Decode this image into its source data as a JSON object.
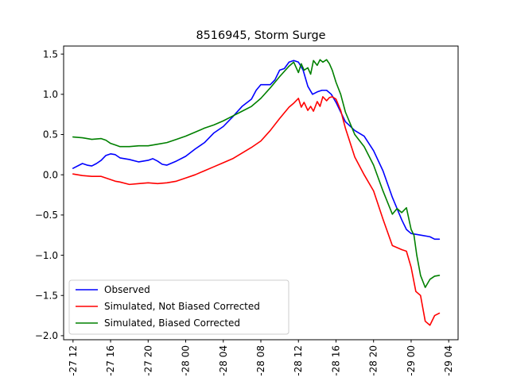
{
  "chart_data": {
    "type": "line",
    "title": "8516945, Storm Surge",
    "xlabel": "",
    "ylabel": "",
    "x_tick_labels": [
      "-27 12",
      "-27 16",
      "-27 20",
      "-28 00",
      "-28 04",
      "-28 08",
      "-28 12",
      "-28 16",
      "-28 20",
      "-29 00",
      "-29 04"
    ],
    "x_tick_hours": [
      0,
      4,
      8,
      12,
      16,
      20,
      24,
      28,
      32,
      36,
      40
    ],
    "xlim": [
      -1,
      41
    ],
    "y_ticks": [
      1.5,
      1.0,
      0.5,
      0.0,
      -0.5,
      -1.0,
      -1.5,
      -2.0
    ],
    "y_tick_labels": [
      "1.5",
      "1.0",
      "0.5",
      "0.0",
      "−0.5",
      "−1.0",
      "−1.5",
      "−2.0"
    ],
    "ylim": [
      -2.05,
      1.6
    ],
    "grid": false,
    "legend_position": "lower-left",
    "series": [
      {
        "name": "Observed",
        "color": "#0000ff",
        "x": [
          0,
          1,
          1.5,
          2,
          2.5,
          3,
          3.5,
          4,
          4.5,
          5,
          6,
          7,
          8,
          8.5,
          9,
          9.5,
          10,
          11,
          12,
          13,
          14,
          15,
          16,
          17,
          18,
          19,
          19.5,
          20,
          21,
          21.5,
          22,
          22.5,
          23,
          23.5,
          24,
          24.5,
          25,
          25.5,
          26,
          26.5,
          27,
          27.5,
          28,
          28.5,
          29,
          30,
          31,
          32,
          33,
          34,
          35,
          35.5,
          36,
          36.5,
          37,
          38,
          38.5,
          39
        ],
        "y": [
          0.08,
          0.14,
          0.12,
          0.11,
          0.14,
          0.18,
          0.24,
          0.26,
          0.25,
          0.21,
          0.19,
          0.16,
          0.18,
          0.2,
          0.17,
          0.13,
          0.12,
          0.17,
          0.23,
          0.32,
          0.4,
          0.52,
          0.6,
          0.72,
          0.85,
          0.94,
          1.05,
          1.12,
          1.12,
          1.18,
          1.3,
          1.32,
          1.4,
          1.42,
          1.4,
          1.3,
          1.1,
          1.0,
          1.03,
          1.05,
          1.05,
          1.0,
          0.9,
          0.78,
          0.66,
          0.55,
          0.48,
          0.3,
          0.05,
          -0.28,
          -0.56,
          -0.68,
          -0.73,
          -0.74,
          -0.75,
          -0.77,
          -0.8,
          -0.8
        ]
      },
      {
        "name": "Simulated, Not Biased Corrected",
        "color": "#ff0000",
        "x": [
          0,
          1,
          2,
          3,
          4,
          4.5,
          5,
          6,
          7,
          8,
          9,
          10,
          11,
          12,
          13,
          14,
          15,
          16,
          17,
          18,
          19,
          20,
          21,
          22,
          23,
          23.5,
          24,
          24.3,
          24.6,
          25,
          25.3,
          25.6,
          26,
          26.3,
          26.6,
          27,
          27.3,
          27.6,
          28,
          28.5,
          29,
          30,
          31,
          32,
          33,
          34,
          35,
          35.5,
          36,
          36.5,
          37,
          37.5,
          38,
          38.5,
          39
        ],
        "y": [
          0.01,
          -0.01,
          -0.02,
          -0.02,
          -0.06,
          -0.08,
          -0.09,
          -0.12,
          -0.11,
          -0.1,
          -0.11,
          -0.1,
          -0.08,
          -0.04,
          0.0,
          0.05,
          0.1,
          0.15,
          0.2,
          0.27,
          0.34,
          0.42,
          0.55,
          0.7,
          0.84,
          0.89,
          0.95,
          0.84,
          0.9,
          0.8,
          0.85,
          0.79,
          0.91,
          0.85,
          0.97,
          0.92,
          0.96,
          0.97,
          0.94,
          0.8,
          0.58,
          0.22,
          0.0,
          -0.2,
          -0.55,
          -0.88,
          -0.93,
          -0.95,
          -1.15,
          -1.45,
          -1.5,
          -1.82,
          -1.87,
          -1.75,
          -1.72
        ]
      },
      {
        "name": "Simulated, Biased Corrected",
        "color": "#008000",
        "x": [
          0,
          1,
          2,
          3,
          3.5,
          4,
          4.5,
          5,
          6,
          7,
          8,
          9,
          10,
          11,
          12,
          13,
          14,
          15,
          16,
          17,
          18,
          19,
          20,
          21,
          22,
          23,
          23.5,
          24,
          24.3,
          24.6,
          25,
          25.3,
          25.6,
          26,
          26.3,
          26.6,
          27,
          27.3,
          27.6,
          28,
          28.5,
          29,
          30,
          31,
          32,
          33,
          34,
          34.5,
          35,
          35.5,
          36,
          36.3,
          36.6,
          37,
          37.5,
          38,
          38.5,
          39
        ],
        "y": [
          0.47,
          0.46,
          0.44,
          0.45,
          0.43,
          0.39,
          0.37,
          0.35,
          0.35,
          0.36,
          0.36,
          0.38,
          0.4,
          0.44,
          0.48,
          0.53,
          0.58,
          0.62,
          0.67,
          0.73,
          0.79,
          0.85,
          0.95,
          1.08,
          1.22,
          1.35,
          1.4,
          1.27,
          1.38,
          1.3,
          1.33,
          1.25,
          1.42,
          1.36,
          1.43,
          1.4,
          1.43,
          1.38,
          1.3,
          1.15,
          1.0,
          0.78,
          0.5,
          0.35,
          0.12,
          -0.2,
          -0.49,
          -0.42,
          -0.47,
          -0.41,
          -0.68,
          -0.75,
          -1.0,
          -1.25,
          -1.4,
          -1.3,
          -1.26,
          -1.25
        ]
      }
    ]
  }
}
